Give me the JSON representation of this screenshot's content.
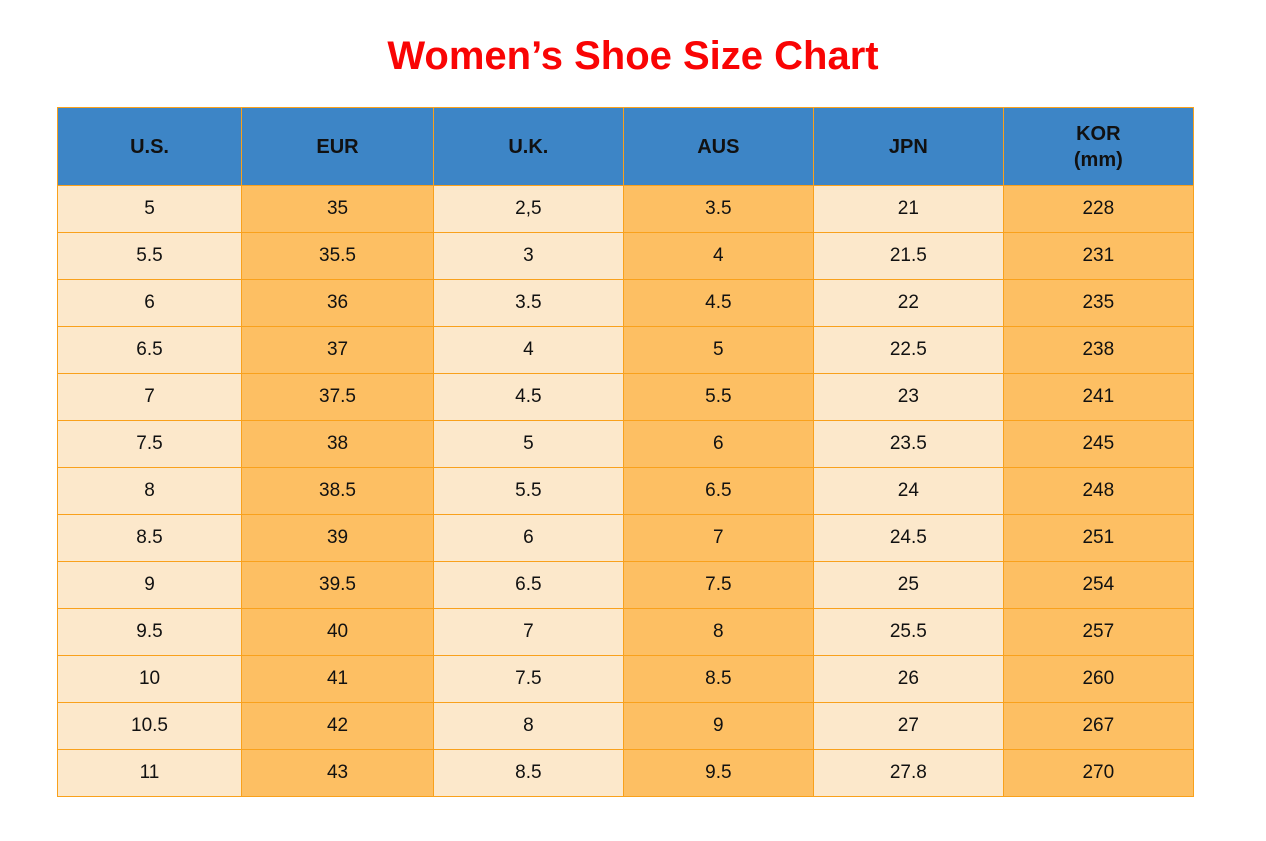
{
  "page": {
    "title": "Women’s Shoe Size Chart"
  },
  "colors": {
    "title": "#f90404",
    "header_bg": "#3d85c6",
    "border": "#f9a11c",
    "column_light": "#fce8cb",
    "column_dark": "#fdbf63",
    "text": "#111111"
  },
  "table": {
    "columns": [
      {
        "key": "us",
        "label": "U.S.",
        "sub": ""
      },
      {
        "key": "eur",
        "label": "EUR",
        "sub": ""
      },
      {
        "key": "uk",
        "label": "U.K.",
        "sub": ""
      },
      {
        "key": "aus",
        "label": "AUS",
        "sub": ""
      },
      {
        "key": "jpn",
        "label": "JPN",
        "sub": ""
      },
      {
        "key": "kor",
        "label": "KOR",
        "sub": "(mm)"
      }
    ],
    "rows": [
      [
        "5",
        "35",
        "2,5",
        "3.5",
        "21",
        "228"
      ],
      [
        "5.5",
        "35.5",
        "3",
        "4",
        "21.5",
        "231"
      ],
      [
        "6",
        "36",
        "3.5",
        "4.5",
        "22",
        "235"
      ],
      [
        "6.5",
        "37",
        "4",
        "5",
        "22.5",
        "238"
      ],
      [
        "7",
        "37.5",
        "4.5",
        "5.5",
        "23",
        "241"
      ],
      [
        "7.5",
        "38",
        "5",
        "6",
        "23.5",
        "245"
      ],
      [
        "8",
        "38.5",
        "5.5",
        "6.5",
        "24",
        "248"
      ],
      [
        "8.5",
        "39",
        "6",
        "7",
        "24.5",
        "251"
      ],
      [
        "9",
        "39.5",
        "6.5",
        "7.5",
        "25",
        "254"
      ],
      [
        "9.5",
        "40",
        "7",
        "8",
        "25.5",
        "257"
      ],
      [
        "10",
        "41",
        "7.5",
        "8.5",
        "26",
        "260"
      ],
      [
        "10.5",
        "42",
        "8",
        "9",
        "27",
        "267"
      ],
      [
        "11",
        "43",
        "8.5",
        "9.5",
        "27.8",
        "270"
      ]
    ]
  }
}
